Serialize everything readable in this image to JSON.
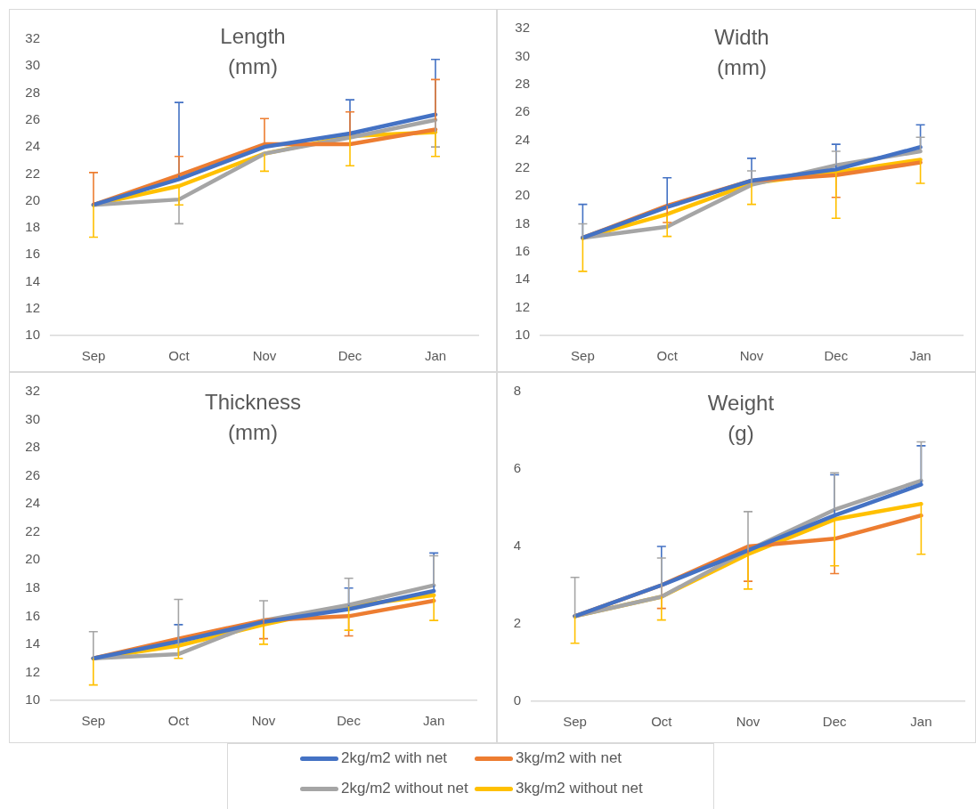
{
  "chart_data": [
    {
      "type": "line",
      "title": "Length\n(mm)",
      "categories": [
        "Sep",
        "Oct",
        "Nov",
        "Dec",
        "Jan"
      ],
      "ylim": [
        10,
        32
      ],
      "yticks": [
        10,
        12,
        14,
        16,
        18,
        20,
        22,
        24,
        26,
        28,
        30,
        32
      ],
      "marker": "none",
      "line_style": "solid",
      "series": [
        {
          "color": "#4472c4",
          "values": [
            19.7,
            21.6,
            24.0,
            25.0,
            26.4
          ],
          "errors": [
            null,
            [
              21.6,
              27.3
            ],
            null,
            [
              25.0,
              27.5
            ],
            [
              26.4,
              30.5
            ]
          ]
        },
        {
          "color": "#ed7d31",
          "values": [
            19.7,
            21.9,
            24.2,
            24.2,
            25.3
          ],
          "errors": [
            [
              19.7,
              22.1
            ],
            [
              21.9,
              23.3
            ],
            [
              24.2,
              26.1
            ],
            [
              24.2,
              26.6
            ],
            [
              25.3,
              29.0
            ]
          ]
        },
        {
          "color": "#a5a5a5",
          "values": [
            19.7,
            20.1,
            23.5,
            24.7,
            26.0
          ],
          "errors": [
            null,
            [
              18.3,
              20.1
            ],
            null,
            null,
            [
              24.0,
              26.0
            ]
          ]
        },
        {
          "color": "#ffc000",
          "values": [
            19.7,
            21.1,
            23.5,
            24.8,
            25.1
          ],
          "errors": [
            [
              17.3,
              19.7
            ],
            [
              19.7,
              21.1
            ],
            [
              22.2,
              23.5
            ],
            [
              22.6,
              24.8
            ],
            [
              23.3,
              25.1
            ]
          ]
        }
      ]
    },
    {
      "type": "line",
      "title": "Width\n(mm)",
      "categories": [
        "Sep",
        "Oct",
        "Nov",
        "Dec",
        "Jan"
      ],
      "ylim": [
        10,
        32
      ],
      "yticks": [
        10,
        12,
        14,
        16,
        18,
        20,
        22,
        24,
        26,
        28,
        30,
        32
      ],
      "marker": "none",
      "line_style": "solid",
      "series": [
        {
          "color": "#4472c4",
          "values": [
            17.0,
            19.2,
            21.1,
            21.9,
            23.5
          ],
          "errors": [
            [
              17.0,
              19.4
            ],
            [
              19.2,
              21.3
            ],
            [
              21.1,
              22.7
            ],
            [
              21.9,
              23.7
            ],
            [
              23.5,
              25.1
            ]
          ]
        },
        {
          "color": "#ed7d31",
          "values": [
            17.0,
            19.3,
            21.1,
            21.5,
            22.4
          ],
          "errors": [
            null,
            [
              18.1,
              19.3
            ],
            null,
            [
              19.9,
              21.5
            ],
            null
          ]
        },
        {
          "color": "#a5a5a5",
          "values": [
            17.0,
            17.8,
            20.8,
            22.2,
            23.2
          ],
          "errors": [
            [
              17.0,
              18.0
            ],
            null,
            [
              20.8,
              21.8
            ],
            [
              22.2,
              23.2
            ],
            [
              23.2,
              24.2
            ]
          ]
        },
        {
          "color": "#ffc000",
          "values": [
            17.0,
            18.7,
            20.9,
            21.7,
            22.6
          ],
          "errors": [
            [
              14.6,
              17.0
            ],
            [
              17.1,
              18.7
            ],
            [
              19.4,
              20.9
            ],
            [
              18.4,
              21.7
            ],
            [
              20.9,
              22.6
            ]
          ]
        }
      ]
    },
    {
      "type": "line",
      "title": "Thickness\n(mm)",
      "categories": [
        "Sep",
        "Oct",
        "Nov",
        "Dec",
        "Jan"
      ],
      "ylim": [
        10,
        32
      ],
      "yticks": [
        10,
        12,
        14,
        16,
        18,
        20,
        22,
        24,
        26,
        28,
        30,
        32
      ],
      "marker": "none",
      "line_style": "solid",
      "series": [
        {
          "color": "#4472c4",
          "values": [
            13.0,
            14.2,
            15.6,
            16.5,
            17.8
          ],
          "errors": [
            null,
            [
              14.2,
              15.4
            ],
            null,
            [
              16.5,
              18.0
            ],
            [
              17.8,
              20.5
            ]
          ]
        },
        {
          "color": "#ed7d31",
          "values": [
            13.0,
            14.4,
            15.7,
            16.0,
            17.1
          ],
          "errors": [
            null,
            null,
            [
              14.4,
              15.7
            ],
            [
              14.6,
              16.0
            ],
            null
          ]
        },
        {
          "color": "#a5a5a5",
          "values": [
            13.0,
            13.3,
            15.7,
            16.8,
            18.2
          ],
          "errors": [
            [
              13.0,
              14.9
            ],
            [
              13.3,
              17.2
            ],
            [
              15.7,
              17.1
            ],
            [
              16.8,
              18.7
            ],
            [
              18.2,
              20.3
            ]
          ]
        },
        {
          "color": "#ffc000",
          "values": [
            13.0,
            13.9,
            15.4,
            16.7,
            17.5
          ],
          "errors": [
            [
              11.1,
              13.0
            ],
            [
              13.0,
              13.9
            ],
            [
              14.0,
              15.4
            ],
            [
              15.0,
              16.7
            ],
            [
              15.7,
              17.5
            ]
          ]
        }
      ]
    },
    {
      "type": "line",
      "title": "Weight\n(g)",
      "categories": [
        "Sep",
        "Oct",
        "Nov",
        "Dec",
        "Jan"
      ],
      "ylim": [
        0,
        8
      ],
      "yticks": [
        0,
        2,
        4,
        6,
        8
      ],
      "marker": "none",
      "line_style": "solid",
      "legend": "bottom",
      "series": [
        {
          "name": "2kg/m2 with net",
          "color": "#4472c4",
          "values": [
            2.2,
            3.0,
            3.9,
            4.8,
            5.6
          ],
          "errors": [
            null,
            [
              3.0,
              4.0
            ],
            null,
            [
              4.8,
              5.85
            ],
            [
              5.6,
              6.6
            ]
          ]
        },
        {
          "name": "3kg/m2 with net",
          "color": "#ed7d31",
          "values": [
            2.2,
            3.0,
            4.0,
            4.2,
            4.8
          ],
          "errors": [
            null,
            [
              2.4,
              3.0
            ],
            [
              3.1,
              4.0
            ],
            [
              3.3,
              4.2
            ],
            null
          ]
        },
        {
          "name": "2kg/m2 without net",
          "color": "#a5a5a5",
          "values": [
            2.2,
            2.7,
            3.9,
            4.95,
            5.7
          ],
          "errors": [
            [
              2.2,
              3.2
            ],
            [
              2.7,
              3.7
            ],
            [
              3.9,
              4.9
            ],
            [
              4.95,
              5.9
            ],
            [
              5.7,
              6.7
            ]
          ]
        },
        {
          "name": "3kg/m2 without net",
          "color": "#ffc000",
          "values": [
            2.2,
            2.7,
            3.8,
            4.7,
            5.1
          ],
          "errors": [
            [
              1.5,
              2.2
            ],
            [
              2.1,
              2.7
            ],
            [
              2.9,
              3.8
            ],
            [
              3.5,
              4.7
            ],
            [
              3.8,
              5.1
            ]
          ]
        }
      ]
    }
  ]
}
